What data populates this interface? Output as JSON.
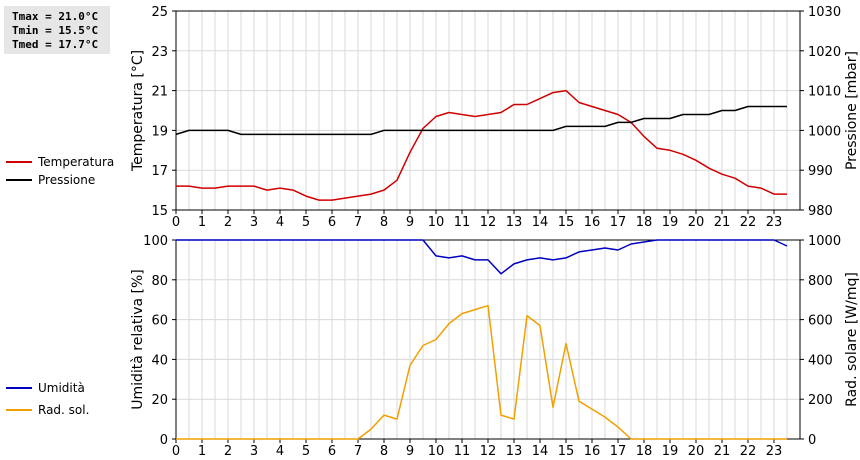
{
  "stats": {
    "tmax": "Tmax = 21.0°C",
    "tmin": "Tmin = 15.5°C",
    "tmed": "Tmed = 17.7°C"
  },
  "legend_top": [
    {
      "label": "Temperatura",
      "color": "#d00000"
    },
    {
      "label": "Pressione",
      "color": "#000000"
    }
  ],
  "legend_bottom": [
    {
      "label": "Umidità",
      "color": "#0000c0"
    },
    {
      "label": "Rad. sol.",
      "color": "#f0a000"
    }
  ],
  "chart_data": [
    {
      "type": "line",
      "xlim": [
        0,
        24
      ],
      "xticks": [
        "0",
        "1",
        "2",
        "3",
        "4",
        "5",
        "6",
        "7",
        "8",
        "9",
        "10",
        "11",
        "12",
        "13",
        "14",
        "15",
        "16",
        "17",
        "18",
        "19",
        "20",
        "21",
        "22",
        "23"
      ],
      "ylabel_left": "Temperatura [°C]",
      "ylabel_right": "Pressione [mbar]",
      "ylim_left": [
        15,
        25
      ],
      "yticks_left": [
        "15",
        "17",
        "19",
        "21",
        "23",
        "25"
      ],
      "ylim_right": [
        980,
        1030
      ],
      "yticks_right": [
        "980",
        "990",
        "1000",
        "1010",
        "1020",
        "1030"
      ],
      "grid": true,
      "series": [
        {
          "name": "Temperatura",
          "axis": "left",
          "color": "#d00000",
          "x": [
            0,
            0.5,
            1,
            1.5,
            2,
            2.5,
            3,
            3.5,
            4,
            4.5,
            5,
            5.5,
            6,
            6.5,
            7,
            7.5,
            8,
            8.5,
            9,
            9.5,
            10,
            10.5,
            11,
            11.5,
            12,
            12.5,
            13,
            13.5,
            14,
            14.5,
            15,
            15.5,
            16,
            16.5,
            17,
            17.5,
            18,
            18.5,
            19,
            19.5,
            20,
            20.5,
            21,
            21.5,
            22,
            22.5,
            23,
            23.5
          ],
          "y": [
            16.2,
            16.2,
            16.1,
            16.1,
            16.2,
            16.2,
            16.2,
            16.0,
            16.1,
            16.0,
            15.7,
            15.5,
            15.5,
            15.6,
            15.7,
            15.8,
            16.0,
            16.5,
            17.9,
            19.1,
            19.7,
            19.9,
            19.8,
            19.7,
            19.8,
            19.9,
            20.3,
            20.3,
            20.6,
            20.9,
            21.0,
            20.4,
            20.2,
            20.0,
            19.8,
            19.4,
            18.7,
            18.1,
            18.0,
            17.8,
            17.5,
            17.1,
            16.8,
            16.6,
            16.2,
            16.1,
            15.8,
            15.8
          ]
        },
        {
          "name": "Pressione",
          "axis": "right",
          "color": "#000000",
          "x": [
            0,
            0.5,
            1,
            1.5,
            2,
            2.5,
            3,
            3.5,
            4,
            4.5,
            5,
            5.5,
            6,
            6.5,
            7,
            7.5,
            8,
            8.5,
            9,
            9.5,
            10,
            10.5,
            11,
            11.5,
            12,
            12.5,
            13,
            13.5,
            14,
            14.5,
            15,
            15.5,
            16,
            16.5,
            17,
            17.5,
            18,
            18.5,
            19,
            19.5,
            20,
            20.5,
            21,
            21.5,
            22,
            22.5,
            23,
            23.5
          ],
          "y": [
            999,
            1000,
            1000,
            1000,
            1000,
            999,
            999,
            999,
            999,
            999,
            999,
            999,
            999,
            999,
            999,
            999,
            1000,
            1000,
            1000,
            1000,
            1000,
            1000,
            1000,
            1000,
            1000,
            1000,
            1000,
            1000,
            1000,
            1000,
            1001,
            1001,
            1001,
            1001,
            1002,
            1002,
            1003,
            1003,
            1003,
            1004,
            1004,
            1004,
            1005,
            1005,
            1006,
            1006,
            1006,
            1006
          ]
        }
      ]
    },
    {
      "type": "line",
      "xlim": [
        0,
        24
      ],
      "xticks": [
        "0",
        "1",
        "2",
        "3",
        "4",
        "5",
        "6",
        "7",
        "8",
        "9",
        "10",
        "11",
        "12",
        "13",
        "14",
        "15",
        "16",
        "17",
        "18",
        "19",
        "20",
        "21",
        "22",
        "23"
      ],
      "ylabel_left": "Umidità relativa [%]",
      "ylabel_right": "Rad. solare [W/mq]",
      "ylim_left": [
        0,
        100
      ],
      "yticks_left": [
        "0",
        "20",
        "40",
        "60",
        "80",
        "100"
      ],
      "ylim_right": [
        0,
        1000
      ],
      "yticks_right": [
        "0",
        "200",
        "400",
        "600",
        "800",
        "1000"
      ],
      "grid": true,
      "series": [
        {
          "name": "Umidità",
          "axis": "left",
          "color": "#0000c0",
          "x": [
            0,
            9.5,
            10,
            10.5,
            11,
            11.5,
            12,
            12.5,
            13,
            13.5,
            14,
            14.5,
            15,
            15.5,
            16,
            16.5,
            17,
            17.5,
            18,
            18.5,
            19,
            23,
            23.5
          ],
          "y": [
            100,
            100,
            92,
            91,
            92,
            90,
            90,
            83,
            88,
            90,
            91,
            90,
            91,
            94,
            95,
            96,
            95,
            98,
            99,
            100,
            100,
            100,
            97
          ]
        },
        {
          "name": "Rad. sol.",
          "axis": "right",
          "color": "#f0a000",
          "x": [
            0,
            6.5,
            7,
            7.5,
            8,
            8.5,
            9,
            9.5,
            10,
            10.5,
            11,
            11.5,
            12,
            12.5,
            13,
            13.5,
            14,
            14.5,
            15,
            15.5,
            16,
            16.5,
            17,
            17.5,
            18,
            23.5
          ],
          "y": [
            0,
            0,
            0,
            50,
            120,
            100,
            370,
            470,
            500,
            580,
            630,
            650,
            670,
            120,
            100,
            620,
            570,
            160,
            480,
            190,
            150,
            110,
            60,
            0,
            0,
            0
          ]
        }
      ]
    }
  ]
}
